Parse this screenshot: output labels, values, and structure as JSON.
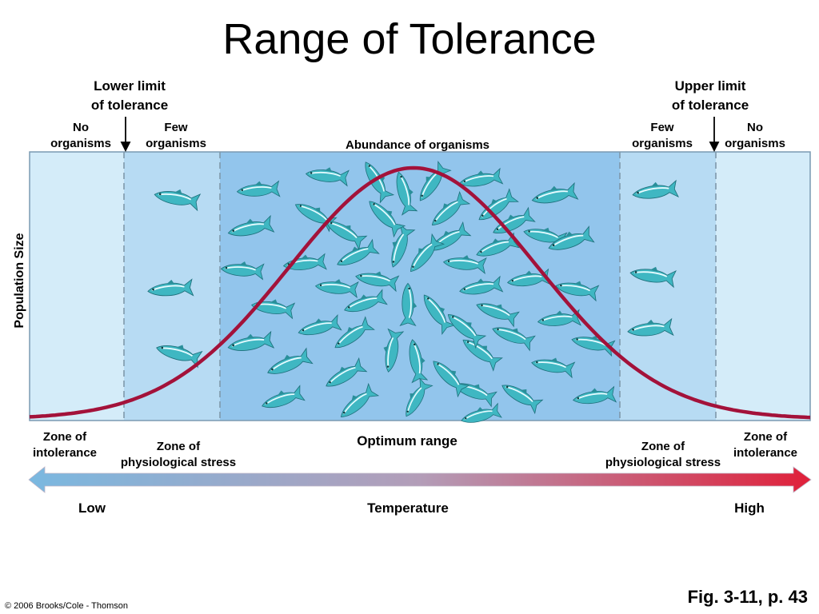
{
  "title": "Range of Tolerance",
  "top_labels": {
    "lower_limit": [
      "Lower limit",
      "of tolerance"
    ],
    "upper_limit": [
      "Upper limit",
      "of tolerance"
    ],
    "no_organisms_left": [
      "No",
      "organisms"
    ],
    "few_organisms_left": [
      "Few",
      "organisms"
    ],
    "abundance": "Abundance of organisms",
    "few_organisms_right": [
      "Few",
      "organisms"
    ],
    "no_organisms_right": [
      "No",
      "organisms"
    ]
  },
  "y_axis_label": "Population Size",
  "zones": {
    "intolerance_left": [
      "Zone of",
      "intolerance"
    ],
    "stress_left": [
      "Zone of",
      "physiological stress"
    ],
    "optimum": "Optimum range",
    "stress_right": [
      "Zone of",
      "physiological stress"
    ],
    "intolerance_right": [
      "Zone of",
      "intolerance"
    ]
  },
  "temperature_axis": {
    "low": "Low",
    "label": "Temperature",
    "high": "High",
    "low_color": "#7ab8e0",
    "high_color": "#e0203a"
  },
  "colors": {
    "intolerance_zone": "#d4ecf9",
    "stress_zone": "#b7dbf3",
    "optimum_zone": "#92c5ec",
    "curve": "#a3123a",
    "fish": "#3fb7c2"
  },
  "fig_caption": "Fig. 3-11, p. 43",
  "copyright": "© 2006 Brooks/Cole - Thomson"
}
